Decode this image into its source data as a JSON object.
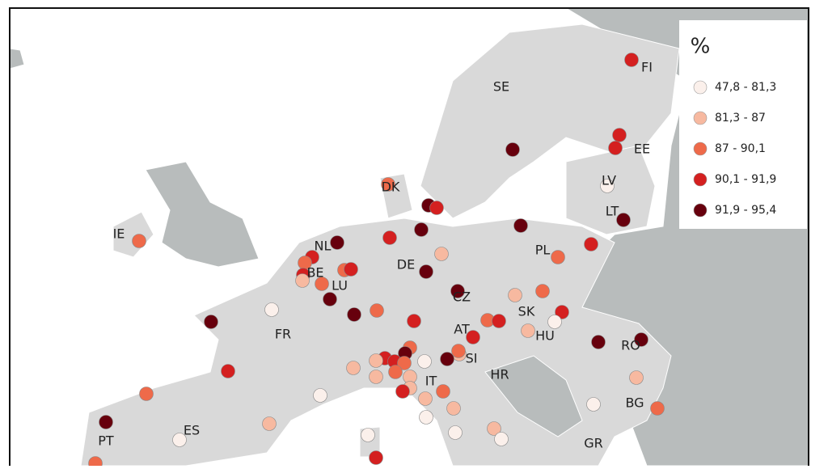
{
  "legend": {
    "title": "%",
    "items": [
      {
        "label": "47,8 - 81,3",
        "color": "#fbf0eb"
      },
      {
        "label": "81,3 - 87",
        "color": "#f7b9a0"
      },
      {
        "label": "87 - 90,1",
        "color": "#ee6a4a"
      },
      {
        "label": "90,1 - 91,9",
        "color": "#d42020"
      },
      {
        "label": "91,9 - 95,4",
        "color": "#67000d"
      }
    ]
  },
  "countries": [
    "SE",
    "FI",
    "EE",
    "LV",
    "LT",
    "DK",
    "IE",
    "NL",
    "PL",
    "DE",
    "BE",
    "LU",
    "CZ",
    "FR",
    "SK",
    "AT",
    "HU",
    "RO",
    "SI",
    "HR",
    "IT",
    "BG",
    "ES",
    "PT",
    "GR"
  ]
}
